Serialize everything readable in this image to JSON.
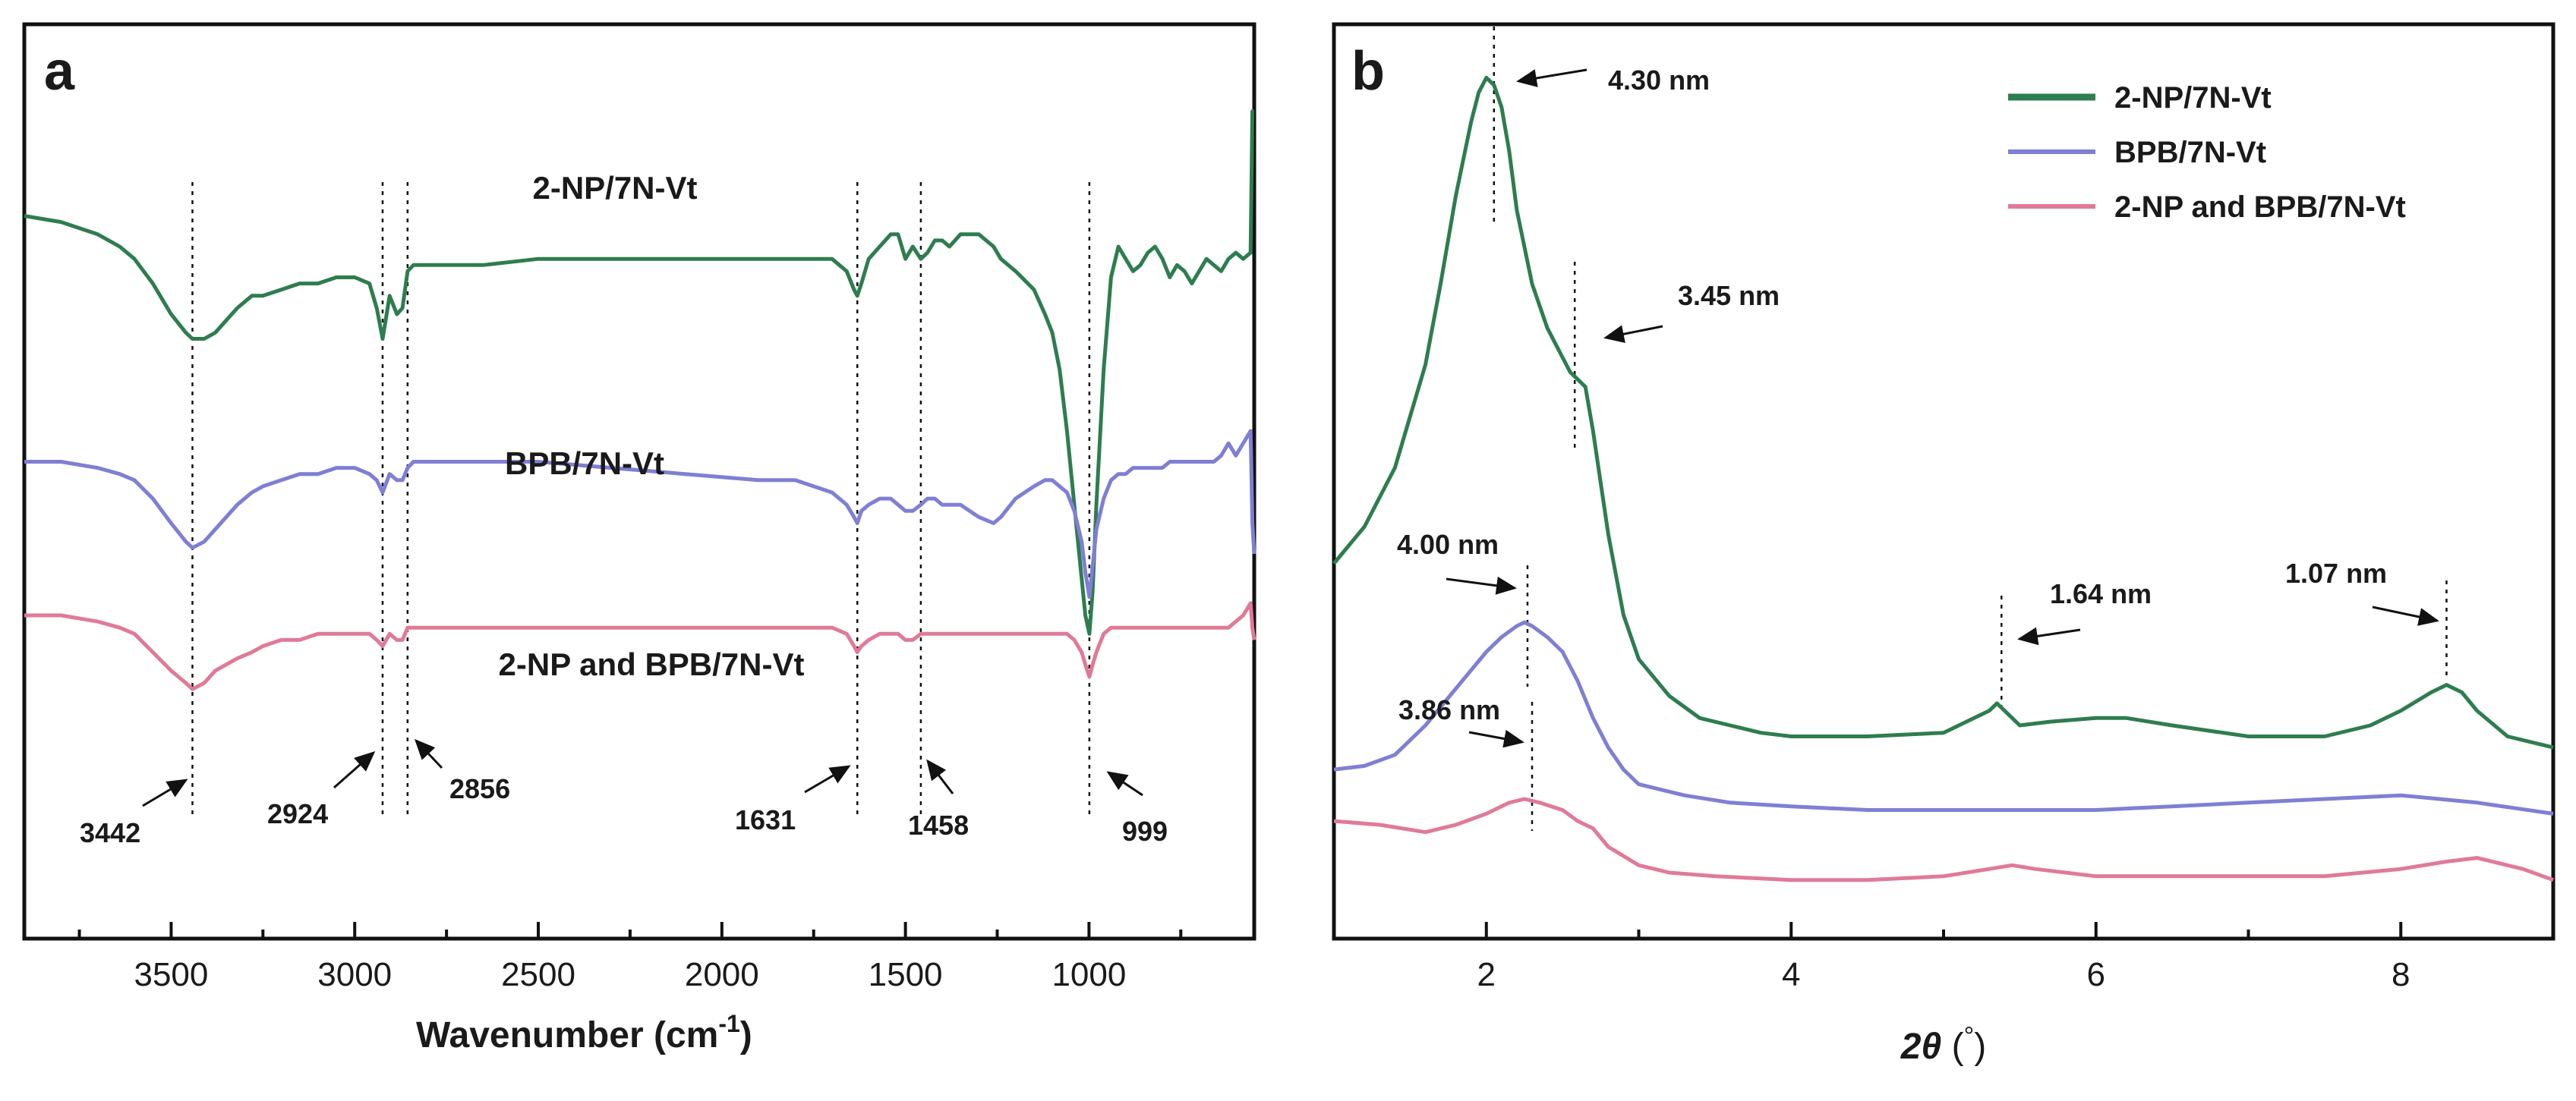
{
  "chart_data": [
    {
      "panel": "a",
      "type": "line",
      "xlabel": "Wavenumber (cm",
      "xlabel_sup": "-1",
      "ylabel": "",
      "xlim": [
        3900,
        550
      ],
      "x_reversed": true,
      "xticks": [
        3500,
        3000,
        2500,
        2000,
        1500,
        1000
      ],
      "colors": {
        "2-NP/7N-Vt": "#2e7d4f",
        "BPB/7N-Vt": "#7f7fd4",
        "2-NP and BPB/7N-Vt": "#e07a98"
      },
      "series": [
        {
          "name": "2-NP/7N-Vt",
          "x": [
            3900,
            3800,
            3700,
            3640,
            3600,
            3550,
            3500,
            3460,
            3442,
            3410,
            3380,
            3350,
            3320,
            3280,
            3250,
            3200,
            3150,
            3100,
            3050,
            3000,
            2960,
            2940,
            2924,
            2905,
            2885,
            2870,
            2856,
            2840,
            2810,
            2750,
            2650,
            2500,
            2300,
            2100,
            1900,
            1800,
            1700,
            1660,
            1640,
            1631,
            1620,
            1600,
            1570,
            1540,
            1520,
            1500,
            1480,
            1458,
            1440,
            1420,
            1400,
            1380,
            1350,
            1300,
            1260,
            1240,
            1200,
            1150,
            1120,
            1100,
            1080,
            1060,
            1040,
            1020,
            1010,
            999,
            990,
            980,
            960,
            940,
            920,
            900,
            880,
            860,
            840,
            820,
            800,
            780,
            760,
            740,
            720,
            700,
            680,
            660,
            640,
            620,
            600,
            580,
            560,
            555,
            550
          ],
          "y": [
            105,
            104,
            102,
            100,
            98,
            94,
            89,
            86,
            85,
            85,
            86,
            88,
            90,
            92,
            92,
            93,
            94,
            94,
            95,
            95,
            94,
            90,
            85,
            92,
            89,
            90,
            96,
            97,
            97,
            97,
            97,
            98,
            98,
            98,
            98,
            98,
            98,
            96,
            93,
            92,
            94,
            98,
            100,
            102,
            102,
            98,
            100,
            98,
            99,
            101,
            101,
            100,
            102,
            102,
            100,
            98,
            96,
            93,
            89,
            86,
            80,
            70,
            58,
            46,
            40,
            37,
            44,
            58,
            80,
            95,
            100,
            98,
            96,
            97,
            99,
            100,
            98,
            95,
            97,
            96,
            94,
            96,
            98,
            97,
            96,
            98,
            99,
            98,
            99,
            122,
            122
          ]
        },
        {
          "name": "BPB/7N-Vt",
          "x": [
            3900,
            3800,
            3700,
            3640,
            3600,
            3550,
            3500,
            3460,
            3442,
            3410,
            3380,
            3350,
            3320,
            3280,
            3250,
            3200,
            3150,
            3100,
            3050,
            3000,
            2960,
            2940,
            2924,
            2905,
            2885,
            2870,
            2856,
            2840,
            2810,
            2750,
            2650,
            2500,
            2300,
            2100,
            1900,
            1800,
            1700,
            1660,
            1640,
            1631,
            1620,
            1600,
            1570,
            1540,
            1520,
            1500,
            1480,
            1458,
            1440,
            1420,
            1400,
            1380,
            1350,
            1300,
            1260,
            1240,
            1200,
            1150,
            1120,
            1100,
            1080,
            1060,
            1040,
            1020,
            1010,
            999,
            990,
            980,
            960,
            940,
            920,
            900,
            880,
            860,
            840,
            820,
            800,
            780,
            760,
            740,
            720,
            700,
            680,
            660,
            640,
            620,
            600,
            580,
            560,
            555,
            550
          ],
          "y": [
            65,
            65,
            64,
            63,
            62,
            59,
            55,
            52,
            51,
            52,
            54,
            56,
            58,
            60,
            61,
            62,
            63,
            63,
            64,
            64,
            63,
            62,
            60,
            63,
            62,
            62,
            64,
            65,
            65,
            65,
            65,
            65,
            64,
            63,
            62,
            62,
            60,
            58,
            56,
            55,
            57,
            58,
            59,
            59,
            58,
            57,
            57,
            58,
            59,
            59,
            58,
            58,
            58,
            56,
            55,
            56,
            59,
            61,
            62,
            62,
            61,
            60,
            57,
            52,
            47,
            43,
            48,
            54,
            59,
            62,
            63,
            63,
            64,
            64,
            64,
            64,
            64,
            65,
            65,
            65,
            65,
            65,
            65,
            65,
            66,
            68,
            66,
            68,
            70,
            55,
            50
          ]
        },
        {
          "name": "2-NP and BPB/7N-Vt",
          "x": [
            3900,
            3800,
            3700,
            3640,
            3600,
            3550,
            3500,
            3460,
            3442,
            3410,
            3380,
            3350,
            3320,
            3280,
            3250,
            3200,
            3150,
            3100,
            3050,
            3000,
            2960,
            2940,
            2924,
            2905,
            2885,
            2870,
            2856,
            2840,
            2810,
            2750,
            2650,
            2500,
            2300,
            2100,
            1900,
            1800,
            1700,
            1660,
            1640,
            1631,
            1620,
            1600,
            1570,
            1540,
            1520,
            1500,
            1480,
            1458,
            1440,
            1420,
            1400,
            1380,
            1350,
            1300,
            1260,
            1240,
            1200,
            1150,
            1120,
            1100,
            1080,
            1060,
            1040,
            1020,
            1010,
            999,
            990,
            980,
            960,
            940,
            920,
            900,
            880,
            860,
            840,
            820,
            800,
            780,
            760,
            740,
            720,
            700,
            680,
            660,
            640,
            620,
            600,
            580,
            560,
            555,
            550
          ],
          "y": [
            40,
            40,
            39,
            38,
            37,
            34,
            31,
            29,
            28,
            29,
            31,
            32,
            33,
            34,
            35,
            36,
            36,
            37,
            37,
            37,
            37,
            36,
            35,
            37,
            36,
            36,
            38,
            38,
            38,
            38,
            38,
            38,
            38,
            38,
            38,
            38,
            38,
            37,
            35,
            34,
            35,
            36,
            37,
            37,
            37,
            36,
            36,
            37,
            37,
            37,
            37,
            37,
            37,
            37,
            37,
            37,
            37,
            37,
            37,
            37,
            37,
            37,
            36,
            34,
            32,
            30,
            32,
            34,
            37,
            38,
            38,
            38,
            38,
            38,
            38,
            38,
            38,
            38,
            38,
            38,
            38,
            38,
            38,
            38,
            38,
            38,
            39,
            40,
            42,
            38,
            36
          ]
        }
      ],
      "series_labels": [
        "2-NP/7N-Vt",
        "BPB/7N-Vt",
        "2-NP and BPB/7N-Vt"
      ],
      "peak_markers": [
        3442,
        2924,
        2856,
        1631,
        1458,
        999
      ],
      "annotations": [
        "3442",
        "2924",
        "2856",
        "1631",
        "1458",
        "999"
      ]
    },
    {
      "panel": "b",
      "type": "line",
      "xlabel": "2θ (°)",
      "xlabel_parts": [
        "2",
        "θ",
        " (",
        "°",
        ")"
      ],
      "ylabel": "",
      "xlim": [
        1,
        9
      ],
      "xticks": [
        2,
        4,
        6,
        8
      ],
      "colors": {
        "2-NP/7N-Vt": "#2e7d4f",
        "BPB/7N-Vt": "#7f7fd4",
        "2-NP and BPB/7N-Vt": "#e07a98"
      },
      "legend": {
        "position": "top-right",
        "entries": [
          "2-NP/7N-Vt",
          "BPB/7N-Vt",
          "2-NP and BPB/7N-Vt"
        ]
      },
      "series": [
        {
          "name": "2-NP/7N-Vt",
          "x": [
            1.0,
            1.2,
            1.4,
            1.6,
            1.7,
            1.8,
            1.9,
            1.95,
            2.0,
            2.05,
            2.1,
            2.15,
            2.2,
            2.3,
            2.4,
            2.5,
            2.55,
            2.6,
            2.65,
            2.7,
            2.8,
            2.9,
            3.0,
            3.2,
            3.4,
            3.6,
            3.8,
            4.0,
            4.5,
            5.0,
            5.2,
            5.3,
            5.35,
            5.4,
            5.5,
            5.7,
            6.0,
            6.2,
            6.5,
            7.0,
            7.5,
            7.8,
            8.0,
            8.2,
            8.3,
            8.4,
            8.5,
            8.7,
            9.0
          ],
          "y": [
            42,
            47,
            55,
            69,
            80,
            92,
            102,
            106,
            108,
            107,
            104,
            98,
            90,
            80,
            74,
            70,
            68,
            67,
            66,
            60,
            46,
            35,
            29,
            24,
            21,
            20,
            19,
            18.5,
            18.5,
            19,
            21,
            22,
            23,
            22,
            20,
            20.5,
            21,
            21,
            20,
            18.5,
            18.5,
            20,
            22,
            24.5,
            25.5,
            24.5,
            22,
            18.5,
            17
          ]
        },
        {
          "name": "BPB/7N-Vt",
          "x": [
            1.0,
            1.2,
            1.4,
            1.6,
            1.8,
            2.0,
            2.1,
            2.2,
            2.25,
            2.3,
            2.4,
            2.5,
            2.6,
            2.7,
            2.8,
            2.9,
            3.0,
            3.3,
            3.6,
            4.0,
            4.5,
            5.0,
            5.5,
            6.0,
            6.5,
            7.0,
            7.5,
            8.0,
            8.5,
            9.0
          ],
          "y": [
            14,
            14.5,
            16,
            20,
            25,
            30,
            32,
            33.5,
            34,
            33.5,
            32,
            30,
            26,
            21,
            17,
            14,
            12,
            10.5,
            9.5,
            9,
            8.5,
            8.5,
            8.5,
            8.5,
            9,
            9.5,
            10,
            10.5,
            9.5,
            8
          ]
        },
        {
          "name": "2-NP and BPB/7N-Vt",
          "x": [
            1.0,
            1.3,
            1.6,
            1.8,
            2.0,
            2.15,
            2.25,
            2.35,
            2.5,
            2.6,
            2.7,
            2.8,
            3.0,
            3.2,
            3.5,
            4.0,
            4.5,
            5.0,
            5.3,
            5.45,
            5.6,
            6.0,
            6.5,
            7.0,
            7.5,
            8.0,
            8.3,
            8.5,
            8.8,
            9.0
          ],
          "y": [
            7,
            6.5,
            5.5,
            6.5,
            8,
            9.5,
            10,
            9.5,
            8.5,
            7,
            6,
            3.5,
            1,
            0,
            -0.5,
            -1,
            -1,
            -0.5,
            0.5,
            1,
            0.5,
            -0.5,
            -0.5,
            -0.5,
            -0.5,
            0.5,
            1.5,
            2,
            0.5,
            -1
          ]
        }
      ],
      "peak_markers": [
        2.05,
        2.58,
        2.27,
        2.3,
        5.38,
        8.3
      ],
      "annotations": [
        "4.30 nm",
        "3.45 nm",
        "4.00 nm",
        "3.86 nm",
        "1.64 nm",
        "1.07 nm"
      ]
    }
  ]
}
